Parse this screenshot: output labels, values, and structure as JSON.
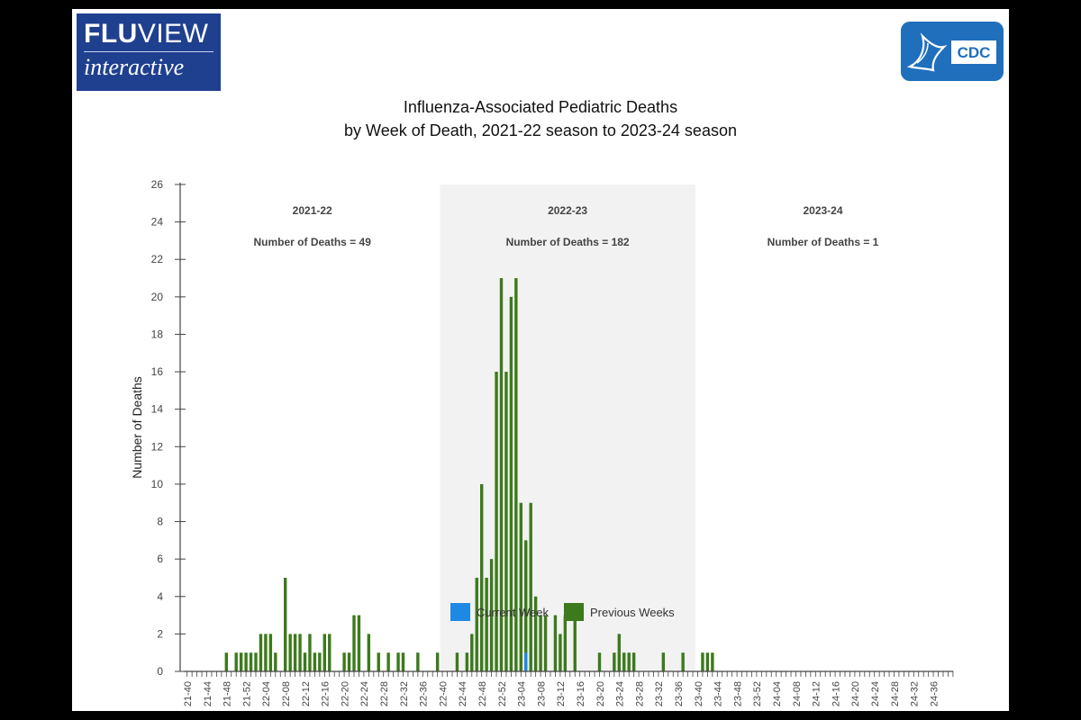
{
  "logos": {
    "fluview_line1_bold": "FLU",
    "fluview_line1_thin": "VIEW",
    "fluview_line2": "interactive",
    "cdc_text": "CDC"
  },
  "colors": {
    "previous_weeks": "#3c7a1c",
    "current_week": "#1e88e5",
    "shaded_season": "#f2f2f2",
    "cdc_blue": "#1f6fbd",
    "fluview_navy": "#1f3f8f"
  },
  "chart_data": {
    "type": "bar",
    "title": "Influenza-Associated Pediatric Deaths",
    "subtitle": "by Week of Death, 2021-22 season to 2023-24 season",
    "ylabel": "Number of Deaths",
    "ylim": [
      0,
      26
    ],
    "yticks": [
      0,
      2,
      4,
      6,
      8,
      10,
      12,
      14,
      16,
      18,
      20,
      22,
      24,
      26
    ],
    "grid": false,
    "legend": {
      "placement": "bottom-center",
      "entries": [
        {
          "label": "Current Week",
          "color": "#1e88e5"
        },
        {
          "label": "Previous Weeks",
          "color": "#3c7a1c"
        }
      ]
    },
    "x_tick_labels": [
      "21-40",
      "21-44",
      "21-48",
      "21-52",
      "22-04",
      "22-08",
      "22-12",
      "22-16",
      "22-20",
      "22-24",
      "22-28",
      "22-32",
      "22-36",
      "22-40",
      "22-44",
      "22-48",
      "22-52",
      "23-04",
      "23-08",
      "23-12",
      "23-16",
      "23-20",
      "23-24",
      "23-28",
      "23-32",
      "23-36",
      "23-40",
      "23-44",
      "23-48",
      "23-52",
      "24-04",
      "24-08",
      "24-12",
      "24-16",
      "24-20",
      "24-24",
      "24-28",
      "24-32",
      "24-36"
    ],
    "seasons": [
      {
        "label": "2021-22",
        "summary": "Number of Deaths = 49",
        "shaded": false
      },
      {
        "label": "2022-23",
        "summary": "Number of Deaths = 182",
        "shaded": true
      },
      {
        "label": "2023-24",
        "summary": "Number of Deaths = 1",
        "shaded": false
      }
    ],
    "weeks_per_tick_label": 4,
    "weeks_per_season": 52,
    "series": [
      {
        "name": "Previous Weeks",
        "values": [
          0,
          0,
          0,
          0,
          0,
          0,
          0,
          0,
          1,
          0,
          1,
          1,
          1,
          1,
          1,
          2,
          2,
          2,
          1,
          0,
          5,
          2,
          2,
          2,
          1,
          2,
          1,
          1,
          2,
          2,
          0,
          0,
          1,
          1,
          3,
          3,
          0,
          2,
          0,
          1,
          0,
          1,
          0,
          1,
          1,
          0,
          0,
          1,
          0,
          0,
          0,
          1,
          0,
          0,
          0,
          1,
          0,
          1,
          2,
          5,
          10,
          5,
          6,
          16,
          21,
          16,
          20,
          21,
          9,
          7,
          9,
          4,
          3,
          3,
          0,
          3,
          2,
          3,
          0,
          3,
          0,
          0,
          0,
          0,
          1,
          0,
          0,
          1,
          2,
          1,
          1,
          1,
          0,
          0,
          0,
          0,
          0,
          1,
          0,
          0,
          0,
          1,
          0,
          0,
          0,
          1,
          1,
          1,
          0,
          0,
          0,
          0,
          0,
          0,
          0,
          0,
          0,
          0,
          0,
          0,
          0,
          0,
          0,
          0,
          0,
          0,
          0,
          0,
          0,
          0,
          0,
          0,
          0,
          0,
          0,
          0,
          0,
          0,
          0,
          0,
          0,
          0,
          0,
          0,
          0,
          0,
          0,
          0,
          0,
          0,
          0,
          0,
          0,
          0,
          0,
          0
        ]
      },
      {
        "name": "Current Week",
        "values": [
          0,
          0,
          0,
          0,
          0,
          0,
          0,
          0,
          0,
          0,
          0,
          0,
          0,
          0,
          0,
          0,
          0,
          0,
          0,
          0,
          0,
          0,
          0,
          0,
          0,
          0,
          0,
          0,
          0,
          0,
          0,
          0,
          0,
          0,
          0,
          0,
          0,
          0,
          0,
          0,
          0,
          0,
          0,
          0,
          0,
          0,
          0,
          0,
          0,
          0,
          0,
          0,
          0,
          0,
          0,
          0,
          0,
          0,
          0,
          0,
          0,
          0,
          0,
          0,
          0,
          0,
          0,
          0,
          0,
          1,
          0,
          0,
          0,
          0,
          0,
          0,
          0,
          0,
          0,
          0,
          0,
          0,
          0,
          0,
          0,
          0,
          0,
          0,
          0,
          0,
          0,
          0,
          0,
          0,
          0,
          0,
          0,
          0,
          0,
          0,
          0,
          0,
          0,
          0,
          0,
          0,
          0,
          0,
          0,
          0,
          0,
          0,
          0,
          0,
          0,
          0,
          0,
          0,
          0,
          0,
          0,
          0,
          0,
          0,
          0,
          0,
          0,
          0,
          0,
          0,
          0,
          0,
          0,
          0,
          0,
          0,
          0,
          0,
          0,
          0,
          0,
          0,
          0,
          0,
          0,
          0,
          0,
          0,
          0,
          0,
          0,
          0,
          0,
          0,
          0,
          0
        ]
      }
    ]
  }
}
